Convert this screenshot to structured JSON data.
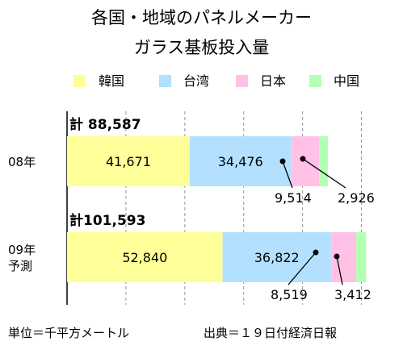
{
  "chart_data": {
    "type": "bar",
    "orientation": "horizontal",
    "stacked": true,
    "title": [
      "各国・地域のパネルメーカー",
      "ガラス基板投入量"
    ],
    "categories": [
      {
        "label": [
          "08年"
        ],
        "total_label": "計 88,587",
        "total": 88587
      },
      {
        "label": [
          "09年",
          "予測"
        ],
        "total_label": "計101,593",
        "total": 101593
      }
    ],
    "series": [
      {
        "name": "韓国",
        "color": "#ffff99",
        "values": [
          41671,
          52840
        ],
        "labels": [
          "41,671",
          "52,840"
        ]
      },
      {
        "name": "台湾",
        "color": "#b3e0ff",
        "values": [
          34476,
          36822
        ],
        "labels": [
          "34,476",
          "36,822"
        ]
      },
      {
        "name": "日本",
        "color": "#ffc2e6",
        "values": [
          9514,
          8519
        ],
        "labels": [
          "9,514",
          "8,519"
        ]
      },
      {
        "name": "中国",
        "color": "#b3ffb3",
        "values": [
          2926,
          3412
        ],
        "labels": [
          "2,926",
          "3,412"
        ]
      }
    ],
    "xlim": [
      0,
      110000
    ],
    "gridlines": "vertical-dashed",
    "legend_position": "top",
    "footnotes": {
      "left": "単位＝千平方メートル",
      "right": "出典＝１９日付経済日報"
    }
  }
}
